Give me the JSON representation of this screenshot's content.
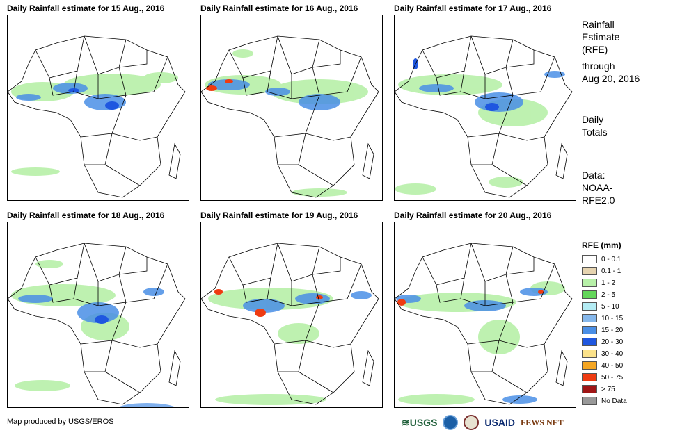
{
  "panels": [
    {
      "title": "Daily Rainfall estimate for 15 Aug., 2016"
    },
    {
      "title": "Daily Rainfall estimate for 16 Aug., 2016"
    },
    {
      "title": "Daily Rainfall estimate for 17 Aug., 2016"
    },
    {
      "title": "Daily Rainfall estimate for 18 Aug., 2016"
    },
    {
      "title": "Daily Rainfall estimate for 19 Aug., 2016"
    },
    {
      "title": "Daily Rainfall estimate for 20 Aug., 2016"
    }
  ],
  "sidebar": {
    "heading_line1": "Rainfall",
    "heading_line2": "Estimate",
    "heading_line3": "(RFE)",
    "through_line1": "through",
    "through_line2": "Aug 20, 2016",
    "totals_line1": "Daily",
    "totals_line2": "Totals",
    "data_line1": "Data:",
    "data_line2": "NOAA-",
    "data_line3": "RFE2.0"
  },
  "legend": {
    "title": "RFE (mm)",
    "items": [
      {
        "label": "0 - 0.1",
        "color": "#ffffff"
      },
      {
        "label": "0.1 - 1",
        "color": "#e6d4b0"
      },
      {
        "label": "1 - 2",
        "color": "#b7f0a8"
      },
      {
        "label": "2 - 5",
        "color": "#63d65a"
      },
      {
        "label": "5 - 10",
        "color": "#b4ecf4"
      },
      {
        "label": "10 - 15",
        "color": "#86b8ec"
      },
      {
        "label": "15 - 20",
        "color": "#4a8fe6"
      },
      {
        "label": "20 - 30",
        "color": "#1f57e0"
      },
      {
        "label": "30 - 40",
        "color": "#fbe28a"
      },
      {
        "label": "40 - 50",
        "color": "#f5a623"
      },
      {
        "label": "50 - 75",
        "color": "#ef3b12"
      },
      {
        "label": "> 75",
        "color": "#a01616"
      },
      {
        "label": "No Data",
        "color": "#999999"
      }
    ]
  },
  "footer": {
    "credit": "Map produced by USGS/EROS",
    "logo_usgs": "≋USGS",
    "logo_usaid": "USAID",
    "logo_fews": "FEWS NET"
  }
}
